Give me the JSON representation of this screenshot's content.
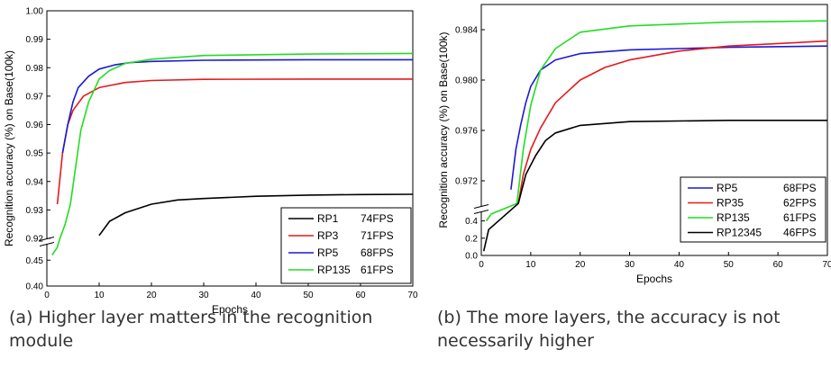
{
  "captions": {
    "a": "(a) Higher layer matters in the recognition module",
    "b": "(b) The more layers, the accuracy is not necessarily higher"
  },
  "chart_data": [
    {
      "type": "line",
      "panel": "a",
      "xlabel": "Epochs",
      "ylabel": "Recognition accuracy (%) on Base(100k)",
      "xlim": [
        0,
        70
      ],
      "xticks": [
        "0",
        "10",
        "20",
        "30",
        "40",
        "50",
        "60",
        "70"
      ],
      "y_axis_broken": true,
      "ylim_upper": [
        0.92,
        1.0
      ],
      "ylim_lower": [
        0.4,
        0.48
      ],
      "yticks_upper": [
        "0.92",
        "0.93",
        "0.94",
        "0.95",
        "0.96",
        "0.97",
        "0.98",
        "0.99",
        "1.00"
      ],
      "yticks_lower": [
        "0.40",
        "0.45"
      ],
      "legend_position": "bottom-right",
      "series": [
        {
          "name": "RP1",
          "fps": "74FPS",
          "color": "#000000",
          "points": [
            [
              10,
              0.921
            ],
            [
              12,
              0.926
            ],
            [
              15,
              0.929
            ],
            [
              20,
              0.932
            ],
            [
              25,
              0.9335
            ],
            [
              30,
              0.934
            ],
            [
              40,
              0.9348
            ],
            [
              50,
              0.9352
            ],
            [
              60,
              0.9354
            ],
            [
              70,
              0.9355
            ]
          ]
        },
        {
          "name": "RP3",
          "fps": "71FPS",
          "color": "#e8191c",
          "points": [
            [
              2,
              0.932
            ],
            [
              3,
              0.95
            ],
            [
              4,
              0.96
            ],
            [
              5,
              0.965
            ],
            [
              7,
              0.97
            ],
            [
              10,
              0.973
            ],
            [
              15,
              0.9748
            ],
            [
              20,
              0.9755
            ],
            [
              30,
              0.9759
            ],
            [
              50,
              0.976
            ],
            [
              70,
              0.976
            ]
          ]
        },
        {
          "name": "RP5",
          "fps": "68FPS",
          "color": "#1a19d6",
          "points": [
            [
              3,
              0.95
            ],
            [
              4,
              0.96
            ],
            [
              5,
              0.968
            ],
            [
              6,
              0.973
            ],
            [
              8,
              0.977
            ],
            [
              10,
              0.9795
            ],
            [
              13,
              0.981
            ],
            [
              16,
              0.9818
            ],
            [
              20,
              0.9822
            ],
            [
              30,
              0.9826
            ],
            [
              50,
              0.9828
            ],
            [
              70,
              0.9828
            ]
          ]
        },
        {
          "name": "RP135",
          "fps": "61FPS",
          "color": "#22dd22",
          "points": [
            [
              1,
              0.46
            ],
            [
              2,
              0.475
            ],
            [
              2.5,
              0.92
            ],
            [
              3.5,
              0.925
            ],
            [
              4.5,
              0.932
            ],
            [
              5.5,
              0.945
            ],
            [
              6.5,
              0.958
            ],
            [
              8,
              0.968
            ],
            [
              10,
              0.976
            ],
            [
              12,
              0.979
            ],
            [
              15,
              0.9815
            ],
            [
              20,
              0.983
            ],
            [
              30,
              0.9843
            ],
            [
              50,
              0.9848
            ],
            [
              70,
              0.985
            ]
          ]
        }
      ]
    },
    {
      "type": "line",
      "panel": "b",
      "xlabel": "Epochs",
      "ylabel": "Recognition accuracy (%) on Base(100k)",
      "xlim": [
        0,
        70
      ],
      "xticks": [
        "0",
        "10",
        "20",
        "30",
        "40",
        "50",
        "60",
        "70"
      ],
      "y_axis_broken": true,
      "ylim_upper": [
        0.97,
        0.986
      ],
      "ylim_lower": [
        0.0,
        0.5
      ],
      "yticks_upper": [
        "0.972",
        "0.976",
        "0.980",
        "0.984"
      ],
      "yticks_lower": [
        "0.0",
        "0.2",
        "0.4"
      ],
      "legend_position": "bottom-right",
      "series": [
        {
          "name": "RP5",
          "fps": "68FPS",
          "color": "#1a19d6",
          "points": [
            [
              6,
              0.9713
            ],
            [
              7,
              0.9745
            ],
            [
              8,
              0.9765
            ],
            [
              9,
              0.9782
            ],
            [
              10,
              0.9795
            ],
            [
              12,
              0.9808
            ],
            [
              15,
              0.9816
            ],
            [
              20,
              0.9821
            ],
            [
              30,
              0.9824
            ],
            [
              50,
              0.9826
            ],
            [
              70,
              0.9827
            ]
          ]
        },
        {
          "name": "RP35",
          "fps": "62FPS",
          "color": "#e8191c",
          "points": [
            [
              7.5,
              0.9702
            ],
            [
              8.5,
              0.9725
            ],
            [
              10,
              0.9745
            ],
            [
              12,
              0.9762
            ],
            [
              15,
              0.9782
            ],
            [
              20,
              0.98
            ],
            [
              25,
              0.981
            ],
            [
              30,
              0.9816
            ],
            [
              40,
              0.9823
            ],
            [
              50,
              0.9827
            ],
            [
              60,
              0.9829
            ],
            [
              70,
              0.9831
            ]
          ]
        },
        {
          "name": "RP135",
          "fps": "61FPS",
          "color": "#22dd22",
          "points": [
            [
              1,
              0.4
            ],
            [
              2,
              0.48
            ],
            [
              7.2,
              0.9702
            ],
            [
              8.5,
              0.9745
            ],
            [
              10,
              0.978
            ],
            [
              12,
              0.9808
            ],
            [
              15,
              0.9825
            ],
            [
              20,
              0.9838
            ],
            [
              30,
              0.9843
            ],
            [
              50,
              0.9846
            ],
            [
              70,
              0.9847
            ]
          ]
        },
        {
          "name": "RP12345",
          "fps": "46FPS",
          "color": "#000000",
          "points": [
            [
              0.5,
              0.05
            ],
            [
              1.5,
              0.3
            ],
            [
              7.5,
              0.9702
            ],
            [
              9,
              0.9725
            ],
            [
              11,
              0.974
            ],
            [
              13,
              0.9752
            ],
            [
              15,
              0.9758
            ],
            [
              20,
              0.9764
            ],
            [
              30,
              0.9767
            ],
            [
              50,
              0.9768
            ],
            [
              70,
              0.9768
            ]
          ]
        }
      ]
    }
  ]
}
